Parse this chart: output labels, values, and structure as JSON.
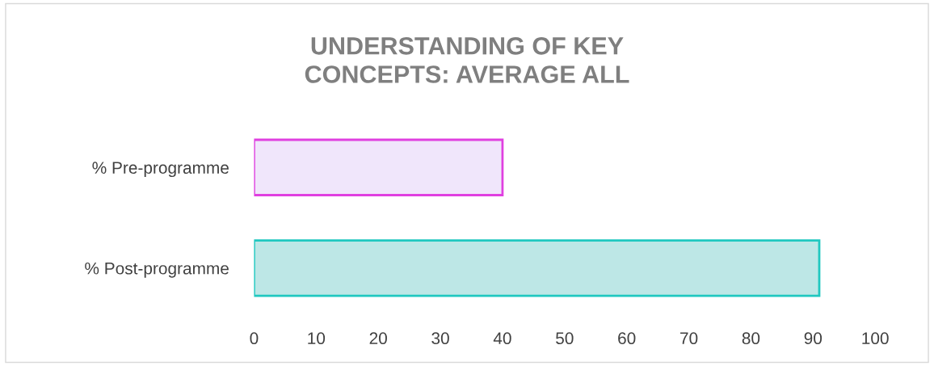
{
  "chart_data": {
    "type": "bar",
    "orientation": "horizontal",
    "title": "UNDERSTANDING OF KEY CONCEPTS: AVERAGE ALL",
    "categories": [
      "% Pre-programme",
      "% Post-programme"
    ],
    "values": [
      40,
      91
    ],
    "colors": [
      "#f0e6fb",
      "#bde7e6"
    ],
    "xlim": [
      0,
      100
    ],
    "xticks": [
      0,
      10,
      20,
      30,
      40,
      50,
      60,
      70,
      80,
      90,
      100
    ],
    "grid": false,
    "legend": false
  }
}
